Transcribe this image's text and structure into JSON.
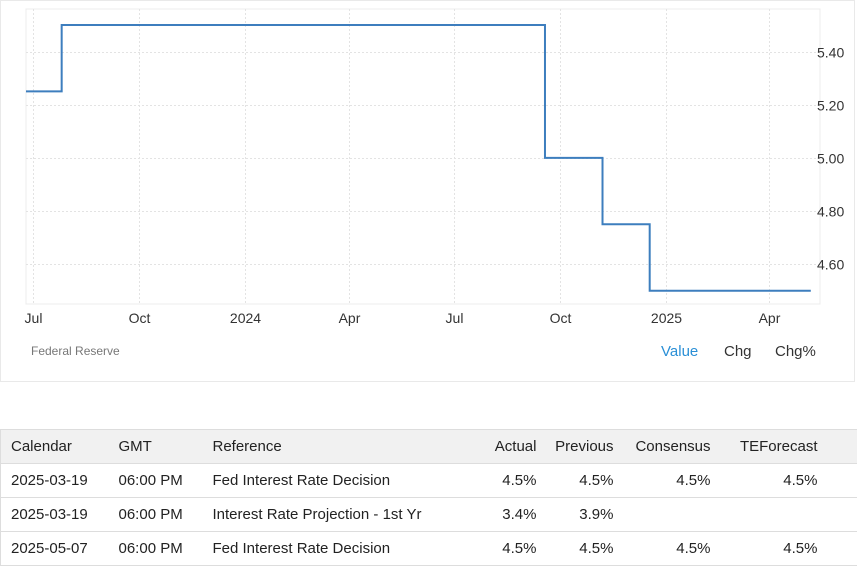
{
  "chart_data": {
    "type": "line",
    "step": true,
    "title": "",
    "xlabel": "",
    "ylabel": "",
    "y_axis_side": "right",
    "ylim": [
      4.45,
      5.56
    ],
    "yticks": [
      4.6,
      4.8,
      5.0,
      5.2,
      5.4
    ],
    "ytick_labels": [
      "4.60",
      "4.80",
      "5.00",
      "5.20",
      "5.40"
    ],
    "xlim": [
      "2023-06-25",
      "2025-05-15"
    ],
    "xticks": [
      "2023-07-01",
      "2023-10-01",
      "2024-01-01",
      "2024-04-01",
      "2024-07-01",
      "2024-10-01",
      "2025-01-01",
      "2025-04-01"
    ],
    "xtick_labels": [
      "Jul",
      "Oct",
      "2024",
      "Apr",
      "Jul",
      "Oct",
      "2025",
      "Apr"
    ],
    "grid": true,
    "line_color": "#3d7ebe",
    "series": [
      {
        "x": [
          "2023-06-25",
          "2023-07-26",
          "2024-09-18",
          "2024-11-07",
          "2024-12-18",
          "2025-05-07"
        ],
        "y": [
          5.25,
          5.5,
          5.0,
          4.75,
          4.5,
          4.5
        ]
      }
    ]
  },
  "source": "Federal Reserve",
  "toggles": [
    {
      "label": "Value",
      "active": true
    },
    {
      "label": "Chg",
      "active": false
    },
    {
      "label": "Chg%",
      "active": false
    }
  ],
  "table": {
    "headers": [
      "Calendar",
      "GMT",
      "Reference",
      "Actual",
      "Previous",
      "Consensus",
      "TEForecast"
    ],
    "rows": [
      [
        "2025-03-19",
        "06:00 PM",
        "Fed Interest Rate Decision",
        "4.5%",
        "4.5%",
        "4.5%",
        "4.5%"
      ],
      [
        "2025-03-19",
        "06:00 PM",
        "Interest Rate Projection - 1st Yr",
        "3.4%",
        "3.9%",
        "",
        ""
      ],
      [
        "2025-05-07",
        "06:00 PM",
        "Fed Interest Rate Decision",
        "4.5%",
        "4.5%",
        "4.5%",
        "4.5%"
      ]
    ]
  }
}
